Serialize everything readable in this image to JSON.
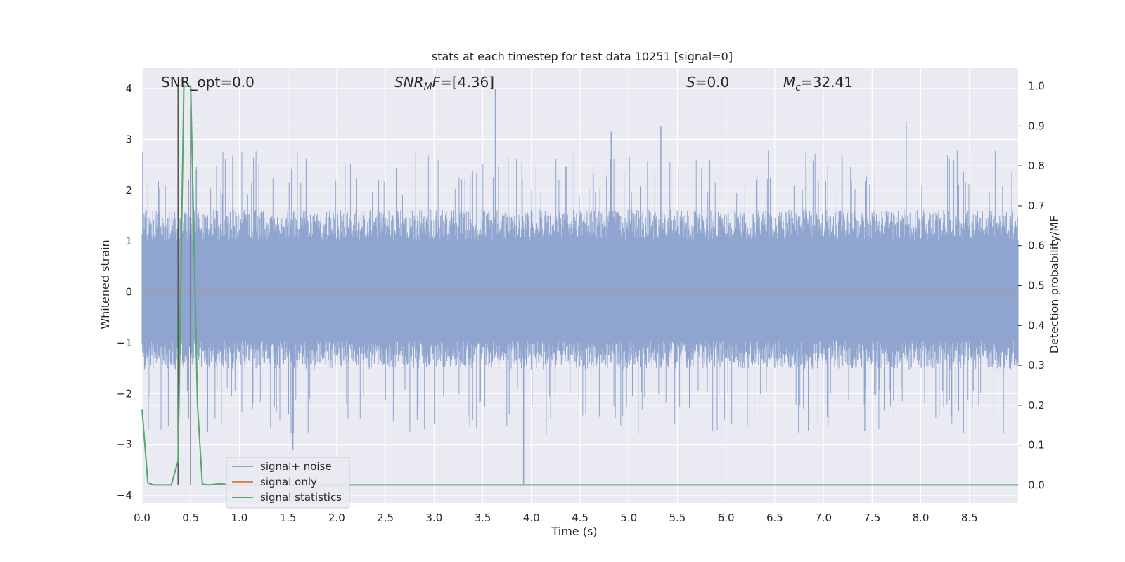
{
  "colors": {
    "background": "#eaeaf2",
    "grid": "#ffffff",
    "noise": "#8fa5cf",
    "signal_only": "#dd8452",
    "statistics": "#55a868",
    "markers": "#555555"
  },
  "chart_data": {
    "type": "line",
    "title": "stats at each timestep for test data 10251 [signal=0]",
    "xlabel": "Time (s)",
    "ylabel": "Whitened strain",
    "y2label": "Detection probability/MF",
    "xlim": [
      0,
      9.0
    ],
    "ylim": [
      -4.15,
      4.4
    ],
    "y2lim": [
      -0.045,
      1.045
    ],
    "xticks": [
      "0.0",
      "0.5",
      "1.0",
      "1.5",
      "2.0",
      "2.5",
      "3.0",
      "3.5",
      "4.0",
      "4.5",
      "5.0",
      "5.5",
      "6.0",
      "6.5",
      "7.0",
      "7.5",
      "8.0",
      "8.5"
    ],
    "yticks": [
      "4",
      "3",
      "2",
      "1",
      "0",
      "−1",
      "−2",
      "−3",
      "−4"
    ],
    "y2ticks": [
      "1.0",
      "0.9",
      "0.8",
      "0.7",
      "0.6",
      "0.5",
      "0.4",
      "0.3",
      "0.2",
      "0.1",
      "0.0"
    ],
    "grid": true,
    "legend": {
      "placement": "lower-left",
      "entries": [
        "signal+ noise",
        "signal only",
        "signal statistics"
      ]
    },
    "annotations": {
      "snr_opt": "SNR_opt=0.0",
      "snr_mf": "=[4.36]",
      "s_value": "=0.0",
      "mc_value": "=32.41",
      "snr_mf_symbol": "SNR",
      "snr_mf_sub": "M",
      "snr_mf_f": "F",
      "s_symbol": "S",
      "mc_symbol": "M",
      "mc_sub": "c"
    },
    "series": [
      {
        "name": "signal+ noise",
        "description_type": "dense noise, whitened strain",
        "envelope_positive_typical": 1.7,
        "envelope_negative_typical": -1.6,
        "notable_peaks": [
          {
            "x": 3.63,
            "y": 4.0
          },
          {
            "x": 7.85,
            "y": 3.35
          },
          {
            "x": 5.33,
            "y": 3.25
          },
          {
            "x": 4.82,
            "y": 3.15
          },
          {
            "x": 3.92,
            "y": -3.8
          },
          {
            "x": 1.55,
            "y": -3.1
          },
          {
            "x": 0.5,
            "y": -2.5
          }
        ]
      },
      {
        "name": "signal only",
        "x": [
          0.0,
          9.0
        ],
        "y": [
          0.0,
          0.0
        ]
      },
      {
        "name": "signal statistics",
        "axis": "right",
        "x": [
          0.0,
          0.06,
          0.12,
          0.3,
          0.37,
          0.43,
          0.5,
          0.57,
          0.62,
          0.68,
          0.8,
          0.9,
          1.0,
          9.0
        ],
        "y": [
          0.19,
          0.005,
          0.0,
          0.0,
          0.06,
          1.0,
          1.0,
          0.2,
          0.002,
          0.0,
          0.003,
          0.0,
          0.0,
          0.0
        ]
      }
    ],
    "vertical_markers": [
      0.37,
      0.5
    ]
  }
}
